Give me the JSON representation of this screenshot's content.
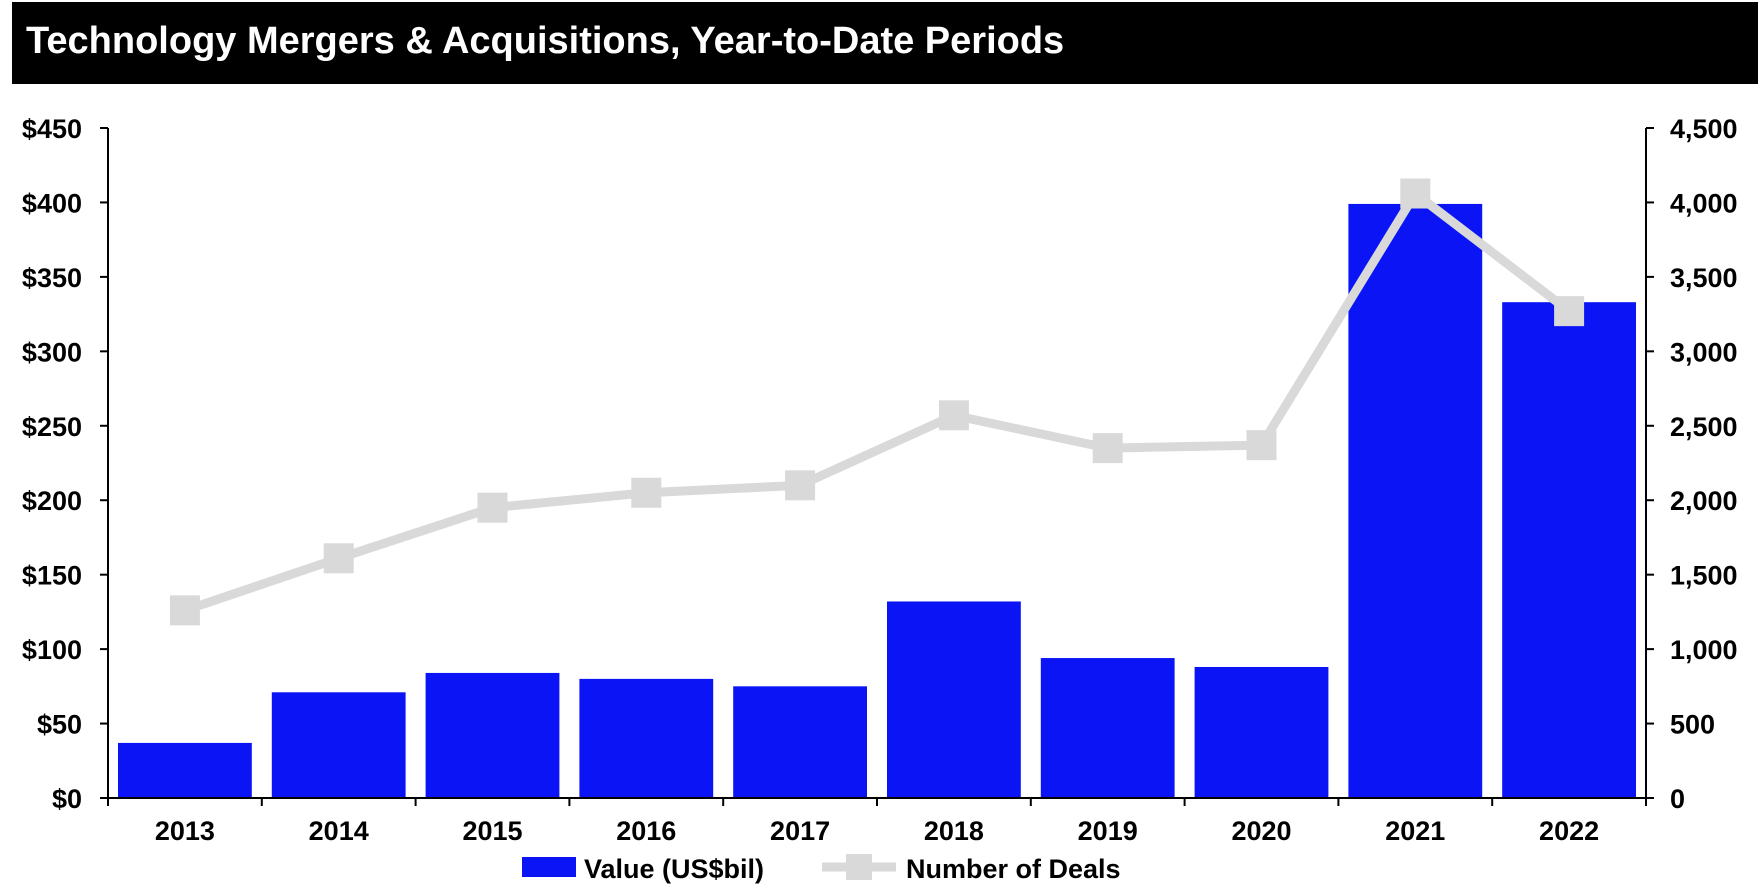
{
  "chart_data": {
    "type": "bar",
    "title": "Technology Mergers & Acquisitions, Year-to-Date Periods",
    "categories": [
      "2013",
      "2014",
      "2015",
      "2016",
      "2017",
      "2018",
      "2019",
      "2020",
      "2021",
      "2022"
    ],
    "series": [
      {
        "name": "Value (US$bil)",
        "kind": "bar",
        "axis": "left",
        "color": "#0a14f5",
        "values": [
          37,
          71,
          84,
          80,
          75,
          132,
          94,
          88,
          399,
          333
        ]
      },
      {
        "name": "Number of Deals",
        "kind": "line",
        "axis": "right",
        "color": "#d9d9d9",
        "values": [
          1260,
          1610,
          1950,
          2050,
          2100,
          2570,
          2350,
          2370,
          4060,
          3270
        ]
      }
    ],
    "y_left": {
      "lim": [
        0,
        450
      ],
      "step": 50,
      "tick_labels": [
        "$0",
        "$50",
        "$100",
        "$150",
        "$200",
        "$250",
        "$300",
        "$350",
        "$400",
        "$450"
      ]
    },
    "y_right": {
      "lim": [
        0,
        4500
      ],
      "step": 500,
      "tick_labels": [
        "0",
        "500",
        "1,000",
        "1,500",
        "2,000",
        "2,500",
        "3,000",
        "3,500",
        "4,000",
        "4,500"
      ]
    },
    "legend_position": "bottom-center",
    "grid": false
  }
}
